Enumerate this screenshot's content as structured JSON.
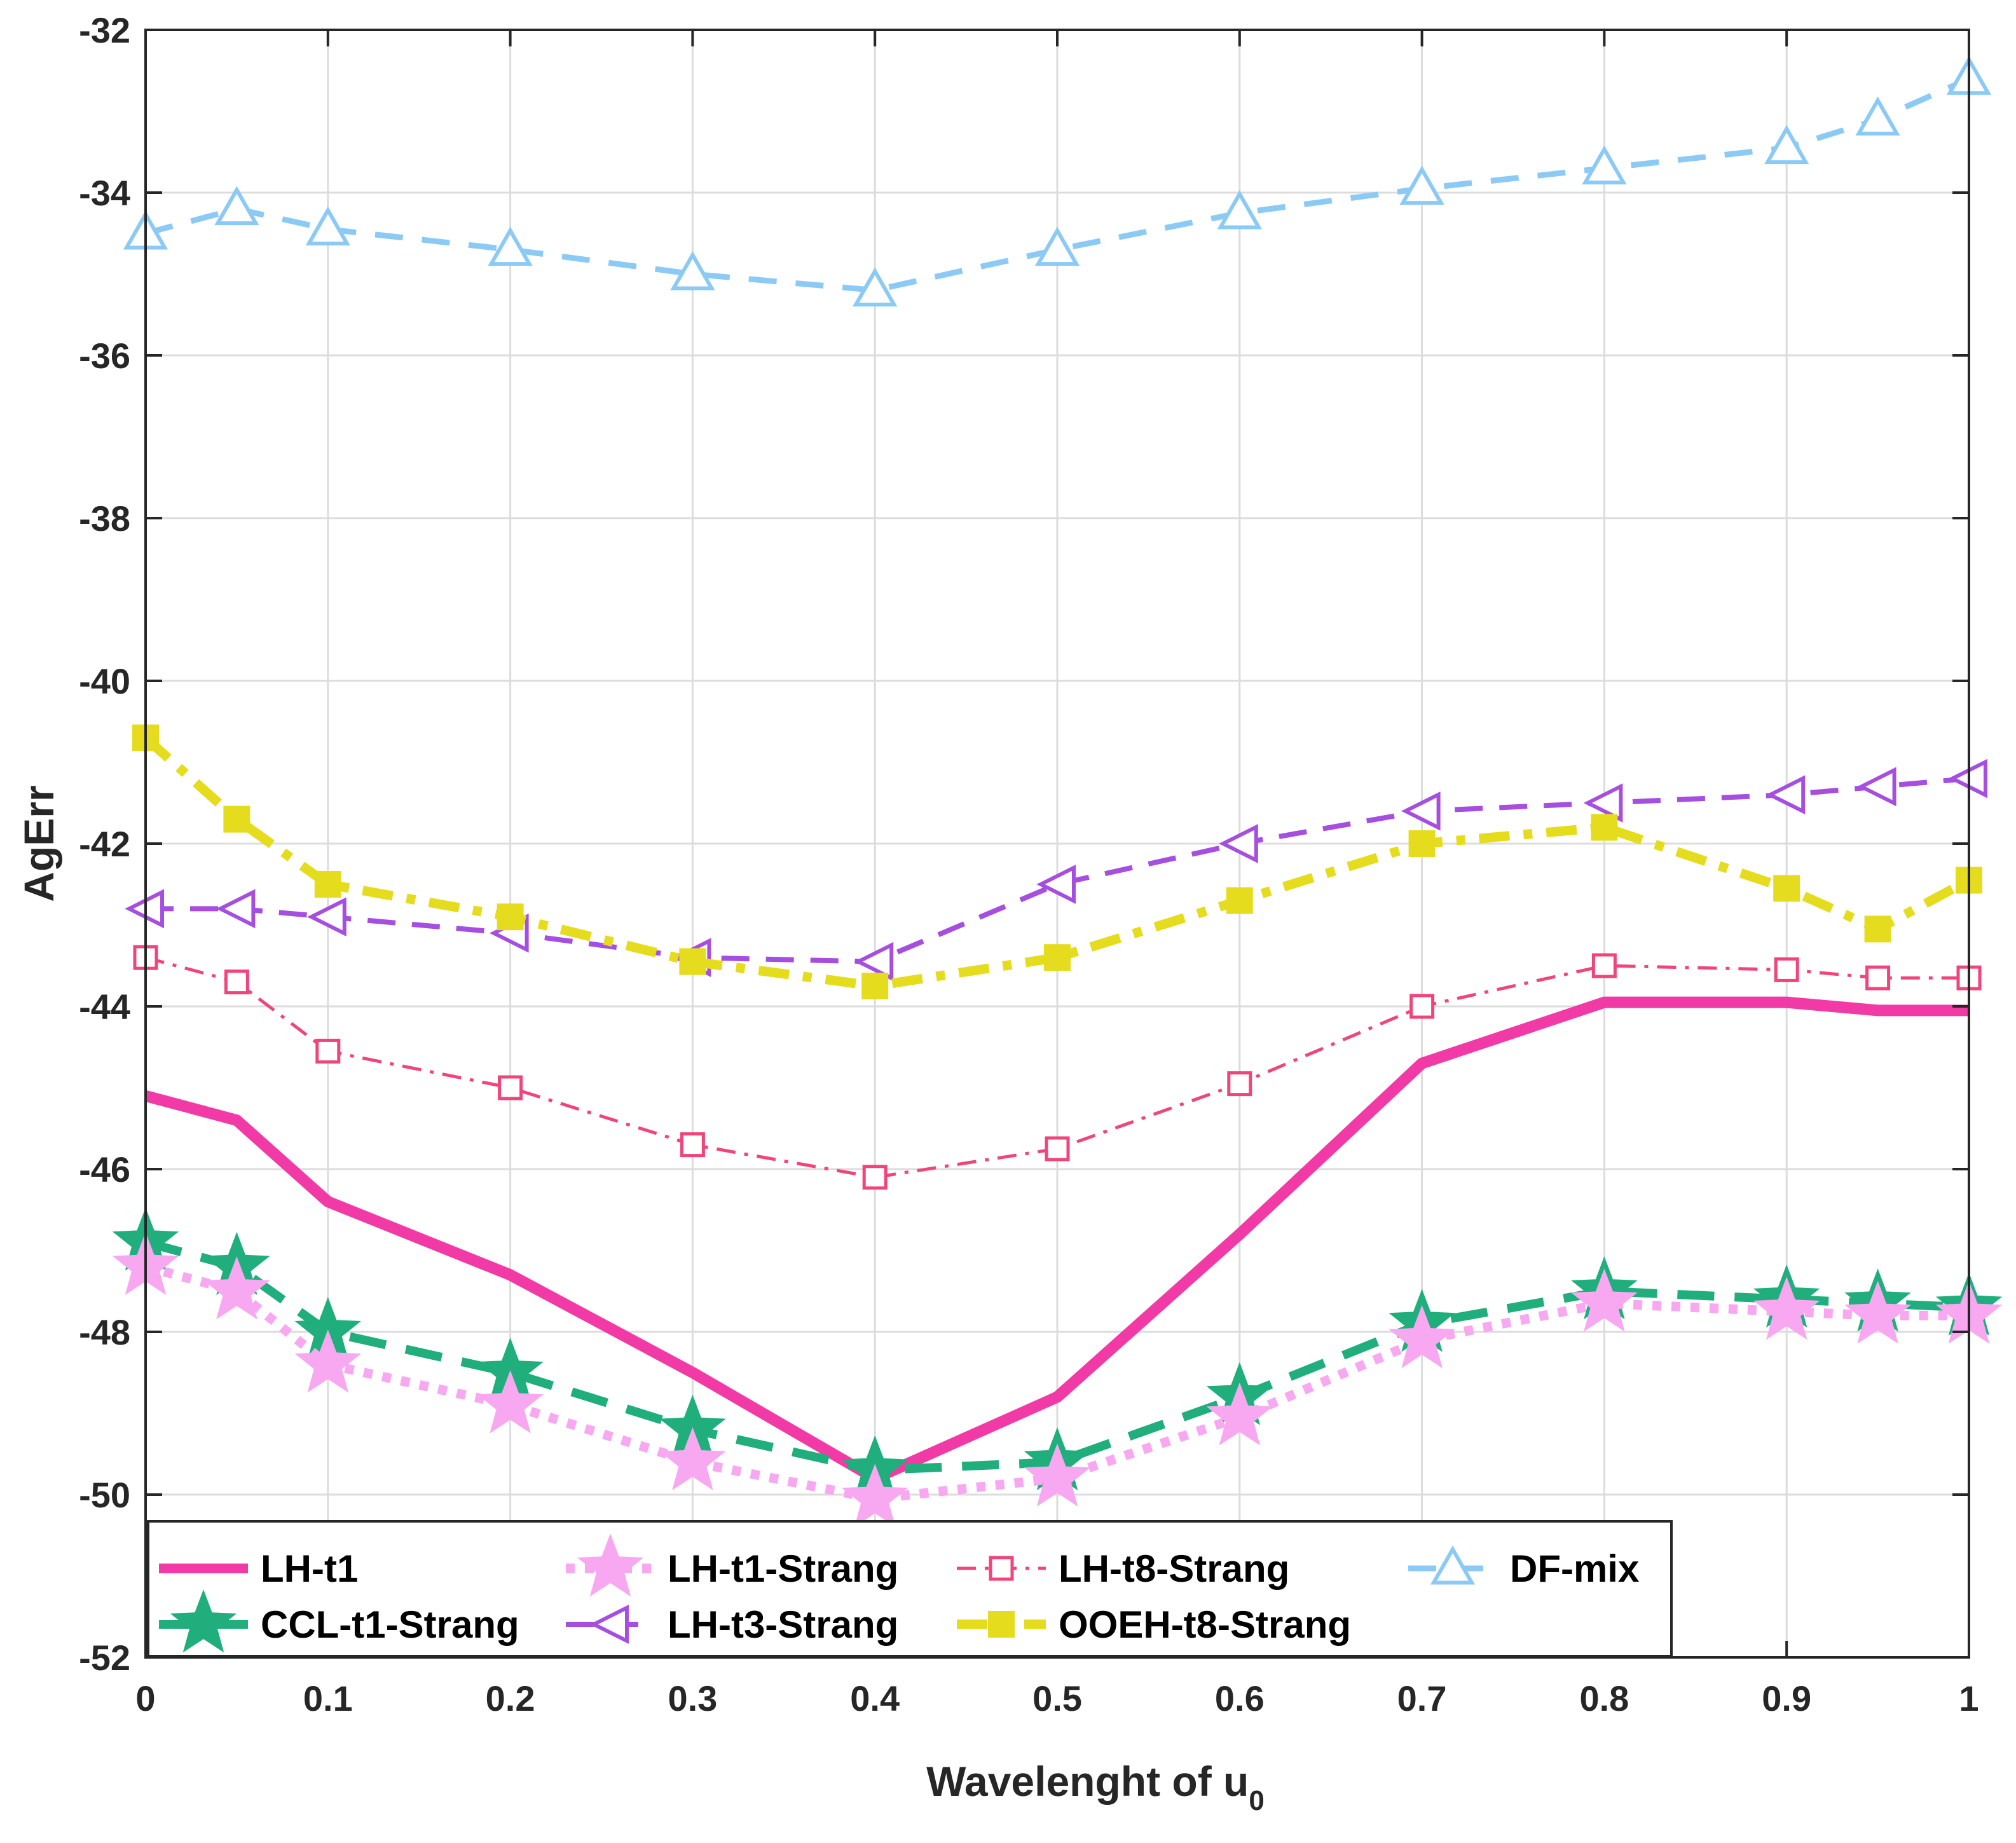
{
  "chart_data": {
    "type": "line",
    "title": "",
    "xlabel": "Wavelenght  of u",
    "xlabel_subscript": "0",
    "ylabel": "AgErr",
    "xlim": [
      0,
      1
    ],
    "ylim": [
      -52,
      -32
    ],
    "grid": true,
    "legend_position": "bottom-left",
    "x_ticks": [
      "0",
      "0.1",
      "0.2",
      "0.3",
      "0.4",
      "0.5",
      "0.6",
      "0.7",
      "0.8",
      "0.9",
      "1"
    ],
    "y_ticks": [
      "-32",
      "-34",
      "-36",
      "-38",
      "-40",
      "-42",
      "-44",
      "-46",
      "-48",
      "-50",
      "-52"
    ],
    "x": [
      0,
      0.05,
      0.1,
      0.2,
      0.3,
      0.4,
      0.5,
      0.6,
      0.7,
      0.8,
      0.9,
      0.95,
      1
    ],
    "series": [
      {
        "name": "LH-t1",
        "color": "#f23aa6",
        "line_style": "solid",
        "marker": "none",
        "values": [
          -45.1,
          -45.4,
          -46.4,
          -47.3,
          -48.5,
          -49.8,
          -48.8,
          -46.8,
          -44.7,
          -43.95,
          -43.95,
          -44.05,
          -44.05
        ]
      },
      {
        "name": "CCL-t1-Strang",
        "color": "#1fae7c",
        "line_style": "dashed",
        "marker": "star",
        "values": [
          -46.9,
          -47.2,
          -48.0,
          -48.5,
          -49.2,
          -49.7,
          -49.6,
          -48.8,
          -47.9,
          -47.5,
          -47.6,
          -47.65,
          -47.7
        ]
      },
      {
        "name": "LH-t1-Strang",
        "color": "#f7a8f1",
        "line_style": "dotted",
        "marker": "star",
        "values": [
          -47.2,
          -47.5,
          -48.4,
          -48.9,
          -49.6,
          -50.05,
          -49.8,
          -49.05,
          -48.1,
          -47.65,
          -47.75,
          -47.8,
          -47.8
        ]
      },
      {
        "name": "LH-t3-Strang",
        "color": "#a64ee0",
        "line_style": "dashed",
        "marker": "triangle-left",
        "values": [
          -42.8,
          -42.8,
          -42.9,
          -43.1,
          -43.4,
          -43.45,
          -42.5,
          -42.0,
          -41.6,
          -41.5,
          -41.4,
          -41.3,
          -41.2
        ]
      },
      {
        "name": "LH-t8-Strang",
        "color": "#f0457a",
        "line_style": "dashdot",
        "marker": "square",
        "values": [
          -43.4,
          -43.7,
          -44.55,
          -45.0,
          -45.7,
          -46.1,
          -45.75,
          -44.95,
          -44.0,
          -43.5,
          -43.55,
          -43.65,
          -43.65
        ]
      },
      {
        "name": "OOEH-t8-Strang",
        "color": "#e6dc1e",
        "line_style": "dashdot",
        "marker": "filled-square",
        "values": [
          -40.7,
          -41.7,
          -42.5,
          -42.9,
          -43.45,
          -43.75,
          -43.4,
          -42.7,
          -42.0,
          -41.8,
          -42.55,
          -43.05,
          -42.45
        ]
      },
      {
        "name": "DF-mix",
        "color": "#8ccaf6",
        "line_style": "dashed",
        "marker": "triangle-up",
        "values": [
          -34.5,
          -34.2,
          -34.45,
          -34.7,
          -35.0,
          -35.2,
          -34.7,
          -34.25,
          -33.95,
          -33.7,
          -33.45,
          -33.1,
          -32.6
        ]
      }
    ],
    "legend_order": [
      "LH-t1",
      "LH-t1-Strang",
      "LH-t8-Strang",
      "DF-mix",
      "CCL-t1-Strang",
      "LH-t3-Strang",
      "OOEH-t8-Strang"
    ]
  }
}
